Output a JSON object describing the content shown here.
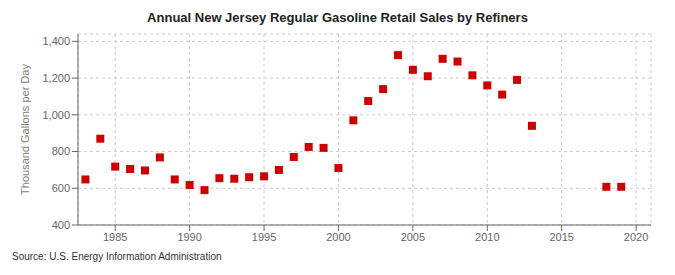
{
  "chart_data": {
    "type": "scatter",
    "title": "Annual New Jersey Regular Gasoline Retail Sales by Refiners",
    "y_label": "Thousand Gallons per Day",
    "annotations": [
      "Source: U.S. Energy Information Administration"
    ],
    "color": "#cc0000",
    "marker": "square",
    "grid": true,
    "xlim": [
      1982.5,
      2021
    ],
    "ylim": [
      400,
      1440
    ],
    "xticks": [
      1985,
      1990,
      1995,
      2000,
      2005,
      2010,
      2015,
      2020
    ],
    "yticks": [
      400,
      600,
      800,
      {
        "value": 1000,
        "label": "1,000"
      },
      {
        "value": 1200,
        "label": "1,200"
      },
      {
        "value": 1400,
        "label": "1,400"
      }
    ],
    "x": [
      1983,
      1984,
      1985,
      1986,
      1987,
      1988,
      1989,
      1990,
      1991,
      1992,
      1993,
      1994,
      1995,
      1996,
      1997,
      1998,
      1999,
      2000,
      2001,
      2002,
      2003,
      2004,
      2005,
      2006,
      2007,
      2008,
      2009,
      2010,
      2011,
      2012,
      2013,
      2018,
      2019
    ],
    "values": [
      648,
      870,
      718,
      705,
      697,
      768,
      648,
      618,
      590,
      655,
      652,
      660,
      665,
      700,
      770,
      825,
      820,
      710,
      970,
      1075,
      1140,
      1325,
      1245,
      1210,
      1305,
      1290,
      1215,
      1160,
      1110,
      1190,
      940,
      608,
      608
    ]
  }
}
